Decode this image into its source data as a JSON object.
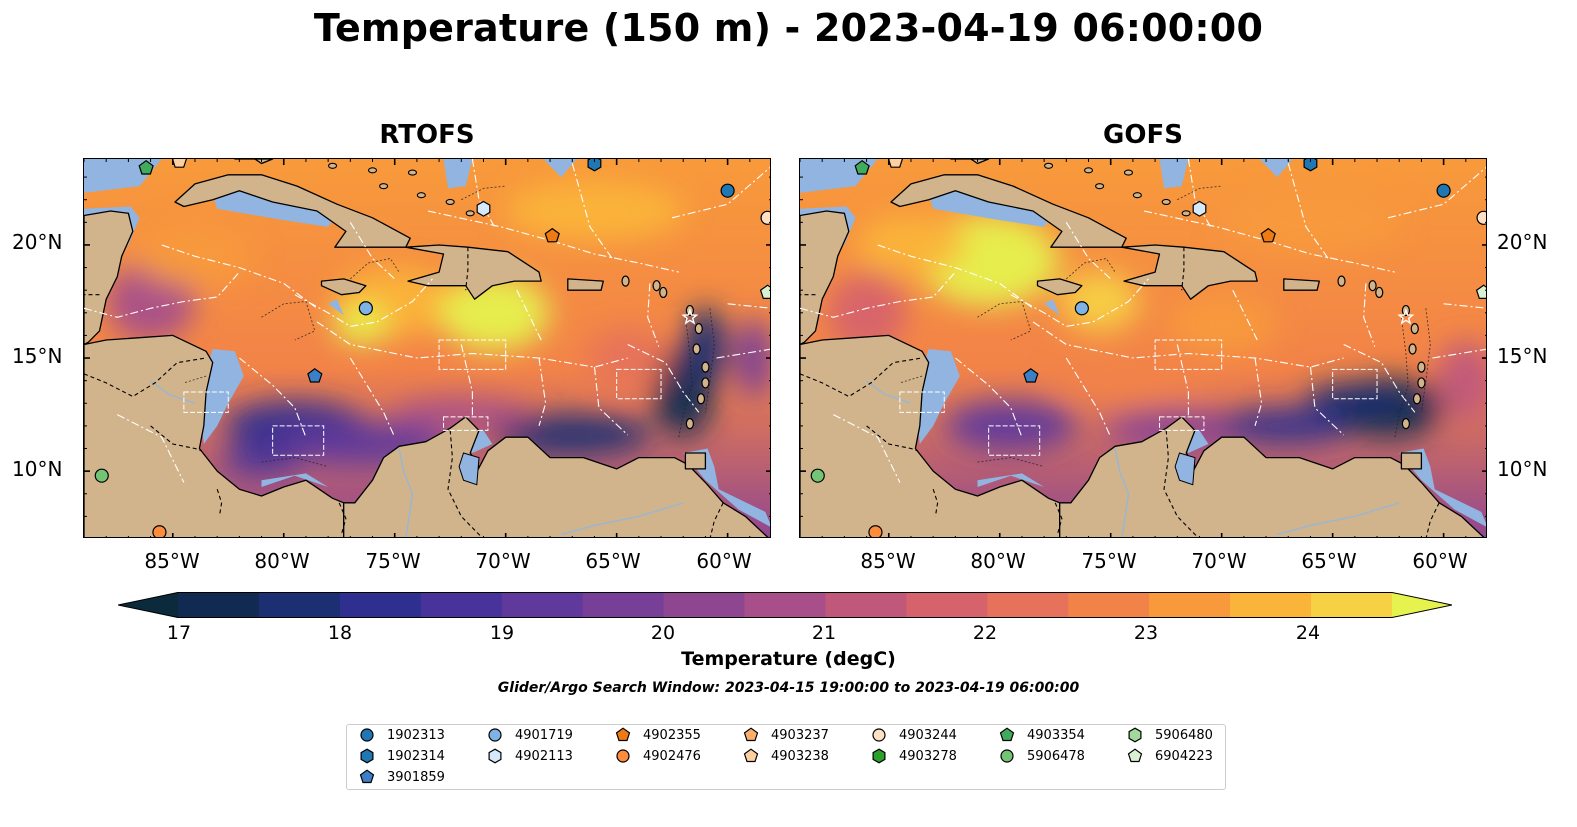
{
  "title": "Temperature (150 m) - 2023-04-19 06:00:00",
  "panels": [
    {
      "title": "RTOFS"
    },
    {
      "title": "GOFS"
    }
  ],
  "axes": {
    "lat_labels": [
      "20°N",
      "15°N",
      "10°N"
    ],
    "lon_labels": [
      "85°W",
      "80°W",
      "75°W",
      "70°W",
      "65°W",
      "60°W"
    ]
  },
  "colorbar": {
    "label": "Temperature (degC)",
    "ticks": [
      "17",
      "18",
      "19",
      "20",
      "21",
      "22",
      "23",
      "24"
    ],
    "min": 16.5,
    "max": 24.5,
    "step": 0.5,
    "colors": [
      "#0b2a3b",
      "#102a52",
      "#1b2f72",
      "#2e2f8e",
      "#48339a",
      "#60399c",
      "#783f98",
      "#8f4691",
      "#a84f89",
      "#c0587c",
      "#d6636c",
      "#e6725b",
      "#f28348",
      "#f89a3b",
      "#fbb43a",
      "#f7d144",
      "#e6f24d"
    ]
  },
  "search_window": "Glider/Argo Search Window: 2023-04-15 19:00:00 to 2023-04-19 06:00:00",
  "map_colors": {
    "land": "#d1b48c",
    "shelf": "#91b4e0",
    "deep_offshore": "#0a2533"
  },
  "legend": [
    {
      "id": "1902313",
      "marker": "circle",
      "color": "#1f77b4"
    },
    {
      "id": "1902314",
      "marker": "hexagon",
      "color": "#1f77b4"
    },
    {
      "id": "3901859",
      "marker": "pentagon",
      "color": "#3c7fc6"
    },
    {
      "id": "4901719",
      "marker": "circle",
      "color": "#7fb2e5"
    },
    {
      "id": "4902113",
      "marker": "hexagon",
      "color": "#d6e9fb"
    },
    {
      "id": "4902355",
      "marker": "pentagon",
      "color": "#ef7a12"
    },
    {
      "id": "4902476",
      "marker": "circle",
      "color": "#fd8d3c"
    },
    {
      "id": "4903237",
      "marker": "pentagon",
      "color": "#fdae6b"
    },
    {
      "id": "4903238",
      "marker": "pentagon",
      "color": "#fdd0a2"
    },
    {
      "id": "4903244",
      "marker": "circle",
      "color": "#fde0c5"
    },
    {
      "id": "4903278",
      "marker": "hexagon",
      "color": "#2ca02c"
    },
    {
      "id": "4903354",
      "marker": "pentagon",
      "color": "#41ab5d"
    },
    {
      "id": "5906478",
      "marker": "circle",
      "color": "#74c476"
    },
    {
      "id": "5906480",
      "marker": "hexagon",
      "color": "#a1d99b"
    },
    {
      "id": "6904223",
      "marker": "pentagon",
      "color": "#d9f0d3"
    }
  ],
  "floats": [
    {
      "id": "1902313",
      "lon": -60.0,
      "lat": 22.4
    },
    {
      "id": "1902314",
      "lon": -66.0,
      "lat": 23.6
    },
    {
      "id": "3901859",
      "lon": -78.6,
      "lat": 14.2
    },
    {
      "id": "4901719",
      "lon": -76.3,
      "lat": 17.2
    },
    {
      "id": "4902113",
      "lon": -71.0,
      "lat": 21.6
    },
    {
      "id": "4902355",
      "lon": -67.9,
      "lat": 20.4
    },
    {
      "id": "4902476",
      "lon": -85.6,
      "lat": 7.3
    },
    {
      "id": "4903238",
      "lon": -84.7,
      "lat": 23.7
    },
    {
      "id": "4903244",
      "lon": -58.2,
      "lat": 21.2
    },
    {
      "id": "4903354",
      "lon": -86.2,
      "lat": 23.4
    },
    {
      "id": "5906478",
      "lon": -88.2,
      "lat": 9.8
    },
    {
      "id": "6904223",
      "lon": -58.2,
      "lat": 17.9
    }
  ]
}
